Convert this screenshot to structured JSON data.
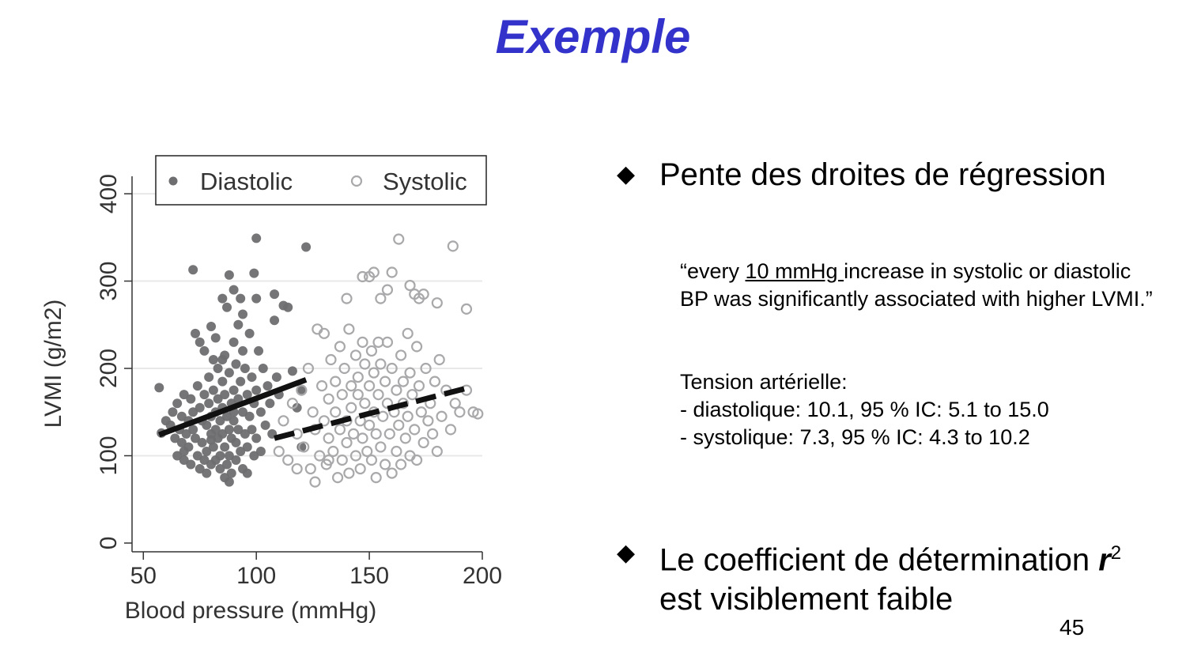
{
  "slide": {
    "title": "Exemple",
    "bullet1": "Pente des droites de  régression",
    "quote": {
      "part1": "“every ",
      "underlined": "10 mmHg ",
      "part2": "increase in systolic or diastolic BP was significantly associated with higher LVMI.”"
    },
    "tension": {
      "heading": "Tension artérielle:",
      "line1": "- diastolique: 10.1, 95 % IC: 5.1 to 15.0",
      "line2": "- systolique: 7.3, 95 % IC: 4.3 to 10.2"
    },
    "bullet2": {
      "part1": "Le coefficient de détermination ",
      "r": "r",
      "sup": "2",
      "part2": "est visiblement faible"
    },
    "page_number": "45"
  },
  "chart_data": {
    "type": "scatter",
    "xlabel": "Blood pressure (mmHg)",
    "ylabel": "LVMI (g/m2)",
    "xlim": [
      45,
      200
    ],
    "ylim": [
      -10,
      420
    ],
    "xticks": [
      50,
      100,
      150,
      200
    ],
    "yticks": [
      0,
      100,
      200,
      300,
      400
    ],
    "grid": true,
    "legend_position": "top",
    "series": [
      {
        "name": "Diastolic",
        "marker": "filled-circle",
        "color": "#6e6e70",
        "points": [
          [
            57,
            178
          ],
          [
            58,
            126
          ],
          [
            60,
            140
          ],
          [
            62,
            135
          ],
          [
            63,
            150
          ],
          [
            64,
            120
          ],
          [
            65,
            160
          ],
          [
            65,
            100
          ],
          [
            66,
            130
          ],
          [
            67,
            145
          ],
          [
            67,
            115
          ],
          [
            68,
            170
          ],
          [
            68,
            95
          ],
          [
            69,
            125
          ],
          [
            70,
            140
          ],
          [
            70,
            110
          ],
          [
            71,
            165
          ],
          [
            71,
            90
          ],
          [
            72,
            150
          ],
          [
            72,
            130
          ],
          [
            73,
            240
          ],
          [
            73,
            120
          ],
          [
            74,
            180
          ],
          [
            74,
            100
          ],
          [
            75,
            230
          ],
          [
            75,
            155
          ],
          [
            75,
            85
          ],
          [
            76,
            140
          ],
          [
            76,
            115
          ],
          [
            77,
            220
          ],
          [
            77,
            170
          ],
          [
            77,
            95
          ],
          [
            78,
            135
          ],
          [
            78,
            105
          ],
          [
            78,
            80
          ],
          [
            79,
            190
          ],
          [
            79,
            160
          ],
          [
            80,
            145
          ],
          [
            80,
            125
          ],
          [
            80,
            248
          ],
          [
            80,
            90
          ],
          [
            81,
            210
          ],
          [
            81,
            175
          ],
          [
            81,
            110
          ],
          [
            82,
            150
          ],
          [
            82,
            130
          ],
          [
            82,
            95
          ],
          [
            83,
            200
          ],
          [
            83,
            165
          ],
          [
            83,
            120
          ],
          [
            84,
            140
          ],
          [
            84,
            100
          ],
          [
            84,
            85
          ],
          [
            85,
            185
          ],
          [
            85,
            155
          ],
          [
            85,
            125
          ],
          [
            85,
            280
          ],
          [
            86,
            215
          ],
          [
            86,
            170
          ],
          [
            86,
            110
          ],
          [
            87,
            145
          ],
          [
            87,
            90
          ],
          [
            87,
            270
          ],
          [
            88,
            195
          ],
          [
            88,
            130
          ],
          [
            88,
            100
          ],
          [
            88,
            70
          ],
          [
            89,
            160
          ],
          [
            89,
            120
          ],
          [
            89,
            80
          ],
          [
            90,
            290
          ],
          [
            90,
            230
          ],
          [
            90,
            175
          ],
          [
            90,
            140
          ],
          [
            91,
            205
          ],
          [
            91,
            115
          ],
          [
            91,
            95
          ],
          [
            92,
            250
          ],
          [
            92,
            165
          ],
          [
            92,
            130
          ],
          [
            93,
            185
          ],
          [
            93,
            105
          ],
          [
            93,
            280
          ],
          [
            94,
            220
          ],
          [
            94,
            150
          ],
          [
            94,
            85
          ],
          [
            95,
            200
          ],
          [
            95,
            125
          ],
          [
            96,
            170
          ],
          [
            96,
            110
          ],
          [
            97,
            240
          ],
          [
            97,
            145
          ],
          [
            98,
            190
          ],
          [
            98,
            130
          ],
          [
            99,
            160
          ],
          [
            99,
            100
          ],
          [
            100,
            280
          ],
          [
            100,
            175
          ],
          [
            100,
            120
          ],
          [
            101,
            220
          ],
          [
            102,
            150
          ],
          [
            102,
            105
          ],
          [
            103,
            200
          ],
          [
            104,
            135
          ],
          [
            105,
            180
          ],
          [
            106,
            160
          ],
          [
            107,
            125
          ],
          [
            108,
            285
          ],
          [
            109,
            190
          ],
          [
            110,
            170
          ],
          [
            72,
            313
          ],
          [
            88,
            307
          ],
          [
            99,
            309
          ],
          [
            100,
            349
          ],
          [
            108,
            255
          ],
          [
            112,
            272
          ],
          [
            114,
            270
          ],
          [
            116,
            197
          ],
          [
            118,
            155
          ],
          [
            120,
            110
          ],
          [
            120,
            175
          ],
          [
            122,
            339
          ],
          [
            96,
            80
          ],
          [
            86,
            75
          ],
          [
            82,
            235
          ],
          [
            94,
            262
          ],
          [
            68,
            105
          ],
          [
            80,
            118
          ],
          [
            90,
            150
          ],
          [
            85,
            210
          ]
        ],
        "regression": {
          "x": [
            57,
            122
          ],
          "y": [
            124,
            187
          ]
        }
      },
      {
        "name": "Systolic",
        "marker": "hollow-circle",
        "color": "#a9a9ab",
        "points": [
          [
            110,
            105
          ],
          [
            112,
            140
          ],
          [
            114,
            95
          ],
          [
            116,
            160
          ],
          [
            118,
            125
          ],
          [
            120,
            175
          ],
          [
            121,
            110
          ],
          [
            123,
            200
          ],
          [
            124,
            85
          ],
          [
            125,
            150
          ],
          [
            126,
            130
          ],
          [
            127,
            245
          ],
          [
            128,
            100
          ],
          [
            129,
            180
          ],
          [
            130,
            240
          ],
          [
            130,
            140
          ],
          [
            131,
            90
          ],
          [
            132,
            165
          ],
          [
            132,
            120
          ],
          [
            133,
            210
          ],
          [
            134,
            105
          ],
          [
            135,
            185
          ],
          [
            135,
            150
          ],
          [
            136,
            75
          ],
          [
            137,
            130
          ],
          [
            137,
            225
          ],
          [
            138,
            170
          ],
          [
            138,
            95
          ],
          [
            139,
            200
          ],
          [
            140,
            140
          ],
          [
            140,
            115
          ],
          [
            141,
            245
          ],
          [
            141,
            80
          ],
          [
            142,
            180
          ],
          [
            142,
            155
          ],
          [
            143,
            125
          ],
          [
            144,
            215
          ],
          [
            144,
            100
          ],
          [
            145,
            190
          ],
          [
            145,
            170
          ],
          [
            146,
            140
          ],
          [
            146,
            85
          ],
          [
            147,
            230
          ],
          [
            147,
            120
          ],
          [
            148,
            205
          ],
          [
            148,
            160
          ],
          [
            149,
            105
          ],
          [
            150,
            180
          ],
          [
            150,
            135
          ],
          [
            151,
            220
          ],
          [
            151,
            95
          ],
          [
            152,
            195
          ],
          [
            152,
            150
          ],
          [
            153,
            75
          ],
          [
            153,
            125
          ],
          [
            154,
            230
          ],
          [
            154,
            170
          ],
          [
            155,
            110
          ],
          [
            155,
            205
          ],
          [
            156,
            145
          ],
          [
            157,
            90
          ],
          [
            157,
            185
          ],
          [
            158,
            230
          ],
          [
            158,
            160
          ],
          [
            159,
            125
          ],
          [
            160,
            80
          ],
          [
            160,
            200
          ],
          [
            161,
            150
          ],
          [
            162,
            105
          ],
          [
            162,
            175
          ],
          [
            163,
            135
          ],
          [
            164,
            215
          ],
          [
            164,
            90
          ],
          [
            165,
            185
          ],
          [
            165,
            160
          ],
          [
            166,
            120
          ],
          [
            167,
            240
          ],
          [
            167,
            145
          ],
          [
            168,
            100
          ],
          [
            168,
            195
          ],
          [
            169,
            170
          ],
          [
            170,
            130
          ],
          [
            171,
            225
          ],
          [
            171,
            95
          ],
          [
            172,
            180
          ],
          [
            173,
            150
          ],
          [
            174,
            115
          ],
          [
            175,
            200
          ],
          [
            176,
            140
          ],
          [
            177,
            160
          ],
          [
            178,
            125
          ],
          [
            179,
            185
          ],
          [
            180,
            105
          ],
          [
            181,
            210
          ],
          [
            182,
            145
          ],
          [
            184,
            175
          ],
          [
            186,
            130
          ],
          [
            188,
            160
          ],
          [
            190,
            150
          ],
          [
            193,
            175
          ],
          [
            140,
            280
          ],
          [
            147,
            305
          ],
          [
            150,
            305
          ],
          [
            152,
            310
          ],
          [
            155,
            280
          ],
          [
            158,
            290
          ],
          [
            160,
            310
          ],
          [
            163,
            348
          ],
          [
            168,
            295
          ],
          [
            170,
            285
          ],
          [
            172,
            280
          ],
          [
            174,
            285
          ],
          [
            180,
            275
          ],
          [
            187,
            340
          ],
          [
            193,
            268
          ],
          [
            196,
            150
          ],
          [
            198,
            148
          ],
          [
            132,
            95
          ],
          [
            126,
            70
          ],
          [
            118,
            85
          ]
        ],
        "regression": {
          "x": [
            108,
            194
          ],
          "y": [
            120,
            178
          ]
        }
      }
    ]
  }
}
